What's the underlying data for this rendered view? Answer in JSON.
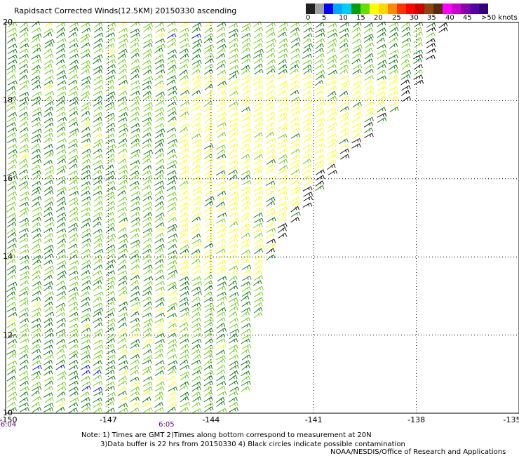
{
  "title": "Rapidsact Corrected Winds(12.5KM) 20150330 ascending",
  "color_scale": {
    "colors": [
      "#202020",
      "#a0a0a0",
      "#0000ff",
      "#00aaff",
      "#00ccff",
      "#00a000",
      "#66dd00",
      "#ffff00",
      "#ffd700",
      "#ff8800",
      "#ff3300",
      "#ff0000",
      "#cc0000",
      "#8b4513",
      "#5a2a10",
      "#ff00ff",
      "#cc00cc",
      "#8800aa",
      "#5500aa",
      "#330077"
    ],
    "labels": [
      "0",
      "5",
      "10",
      "15",
      "20",
      "25",
      "30",
      "35",
      "40",
      "45",
      ">50 knots"
    ]
  },
  "lat_labels": [
    "20",
    "18",
    "16",
    "14",
    "12",
    "10"
  ],
  "lon_labels": [
    "-150",
    "-147",
    "-144",
    "-141",
    "-138",
    "-135"
  ],
  "times": [
    "6:04",
    "6:05"
  ],
  "notes": {
    "line1": "Note: 1) Times are GMT 2)Times along bottom correspond to measurement at 20N",
    "line2": "3)Data buffer is 22 hrs from 20150330 4) Black circles indicate possible contamination",
    "credit": "NOAA/NESDIS/Office of Research and Applications"
  },
  "map_data": {
    "lat_range": [
      10,
      20
    ],
    "lon_range": [
      -150,
      -135
    ],
    "swath_edge": [
      [
        -150,
        10
      ],
      [
        -143.2,
        10
      ],
      [
        -142.5,
        13.8
      ],
      [
        -140.5,
        16.2
      ],
      [
        -138.2,
        18.1
      ],
      [
        -137.2,
        20
      ]
    ],
    "barb_colors": {
      "light": "#66cc00",
      "dark": "#007700",
      "yellow": "#ffff00",
      "blue": "#0000ff",
      "black": "#000000"
    }
  }
}
